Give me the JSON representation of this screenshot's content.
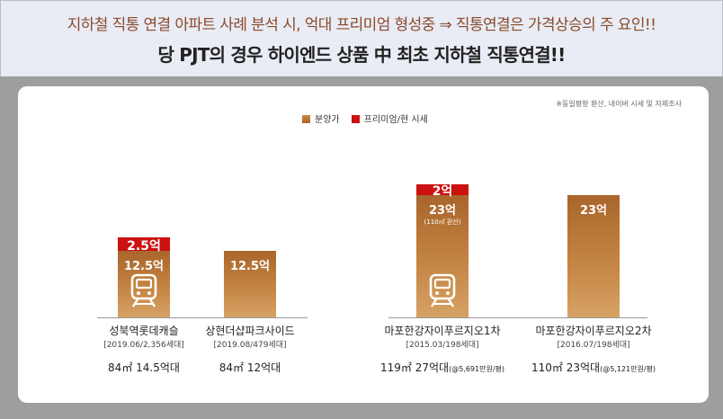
{
  "header": {
    "line1": "지하철 직통 연결 아파트 사례 분석 시, 억대 프리미엄 형성중 ⇒ 직통연결은 가격상승의 주 요인!!",
    "line2": "당 PJT의 경우 하이엔드 상품 中 최초 지하철 직통연결!!"
  },
  "note": "※동일평형 환산, 네이버 시세 및 자체조사",
  "chart_data": {
    "type": "bar",
    "stacked": true,
    "legend_position": "top-center",
    "series": [
      {
        "name": "분양가",
        "color": "#c07a38",
        "values": [
          12.5,
          12.5,
          23,
          23
        ]
      },
      {
        "name": "프리미엄/현 시세",
        "color": "#cc1111",
        "values": [
          2.5,
          0,
          2,
          0
        ]
      }
    ],
    "categories": [
      {
        "name": "성북역롯데캐슬",
        "info": "[2019.06/2,356세대]",
        "price": "84㎡ 14.5억대",
        "price_note": "",
        "base_label": "12.5억",
        "base_sub": "",
        "prem_label": "2.5억",
        "subway": true
      },
      {
        "name": "상현더샵파크사이드",
        "info": "[2019.08/479세대]",
        "price": "84㎡ 12억대",
        "price_note": "",
        "base_label": "12.5억",
        "base_sub": "",
        "prem_label": "",
        "subway": false
      },
      {
        "name": "마포한강자이푸르지오1차",
        "info": "[2015.03/198세대]",
        "price": "119㎡ 27억대",
        "price_note": "(@5,691만원/평)",
        "base_label": "23억",
        "base_sub": "(110㎡ 환산)",
        "prem_label": "2억",
        "subway": true
      },
      {
        "name": "마포한강자이푸르지오2차",
        "info": "[2016.07/198세대]",
        "price": "110㎡ 23억대",
        "price_note": "(@5,121만원/평)",
        "base_label": "23억",
        "base_sub": "",
        "prem_label": "",
        "subway": false
      }
    ]
  }
}
